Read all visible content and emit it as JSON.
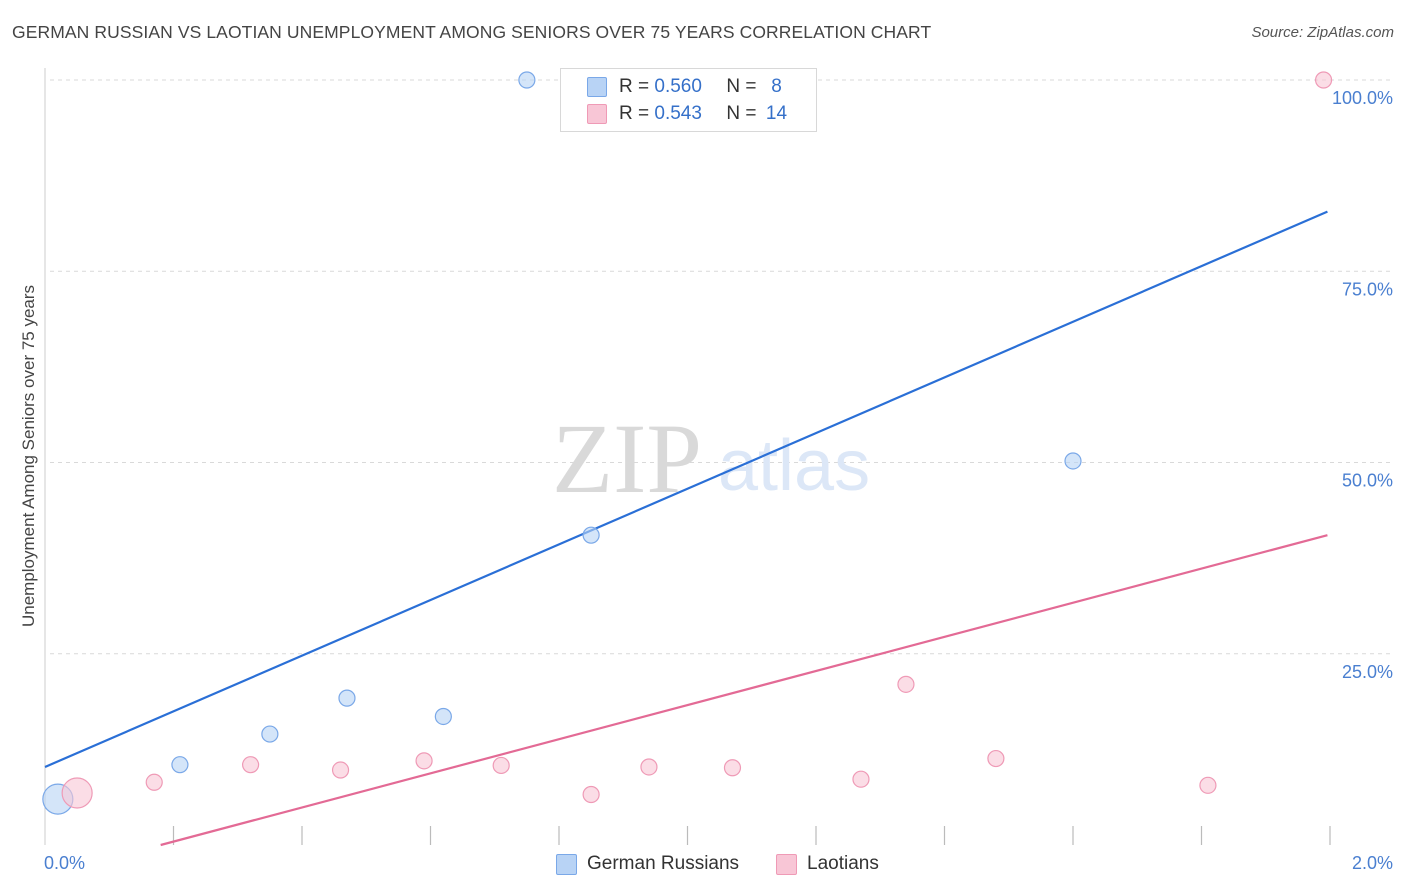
{
  "title": "GERMAN RUSSIAN VS LAOTIAN UNEMPLOYMENT AMONG SENIORS OVER 75 YEARS CORRELATION CHART",
  "source": "Source: ZipAtlas.com",
  "watermark": {
    "zip": "ZIP",
    "atlas": "atlas"
  },
  "colors": {
    "german_fill": "#b8d3f5",
    "german_stroke": "#7aa8e8",
    "german_line": "#2a6fd6",
    "laotian_fill": "#f8c6d6",
    "laotian_stroke": "#ef9ab6",
    "laotian_line": "#e36a95",
    "grid": "#d9d9d9",
    "axis_text": "#4a7fd0"
  },
  "legend": {
    "german": {
      "r_label": "R =",
      "r_value": "0.560",
      "n_label": "N =",
      "n_value": "8"
    },
    "laotian": {
      "r_label": "R =",
      "r_value": "0.543",
      "n_label": "N =",
      "n_value": "14"
    }
  },
  "bottom_legend": {
    "german": "German Russians",
    "laotian": "Laotians"
  },
  "chart_data": {
    "type": "scatter",
    "title": "GERMAN RUSSIAN VS LAOTIAN UNEMPLOYMENT AMONG SENIORS OVER 75 YEARS CORRELATION CHART",
    "xlabel": "",
    "ylabel": "Unemployment Among Seniors over 75 years",
    "xlim": [
      0,
      2.0
    ],
    "ylim": [
      0,
      100
    ],
    "x_tick_labels": [
      "0.0%",
      "2.0%"
    ],
    "y_ticks": [
      25,
      50,
      75,
      100
    ],
    "y_tick_labels": [
      "25.0%",
      "50.0%",
      "75.0%",
      "100.0%"
    ],
    "series": [
      {
        "name": "German Russians",
        "key": "german",
        "points": [
          {
            "x": 0.02,
            "y": 6.0,
            "size": "large"
          },
          {
            "x": 0.21,
            "y": 10.5
          },
          {
            "x": 0.35,
            "y": 14.5
          },
          {
            "x": 0.47,
            "y": 19.2
          },
          {
            "x": 0.62,
            "y": 16.8
          },
          {
            "x": 0.75,
            "y": 100.0
          },
          {
            "x": 0.85,
            "y": 40.5
          },
          {
            "x": 1.6,
            "y": 50.2
          }
        ],
        "trend": {
          "x0": 0.0,
          "y0": 10.2,
          "x1": 1.996,
          "y1": 82.8
        }
      },
      {
        "name": "Laotians",
        "key": "laotian",
        "points": [
          {
            "x": 0.05,
            "y": 6.8,
            "size": "large"
          },
          {
            "x": 0.17,
            "y": 8.2
          },
          {
            "x": 0.32,
            "y": 10.5
          },
          {
            "x": 0.46,
            "y": 9.8
          },
          {
            "x": 0.59,
            "y": 11.0
          },
          {
            "x": 0.71,
            "y": 10.4
          },
          {
            "x": 0.85,
            "y": 6.6
          },
          {
            "x": 0.94,
            "y": 10.2
          },
          {
            "x": 1.07,
            "y": 10.1
          },
          {
            "x": 1.27,
            "y": 8.6
          },
          {
            "x": 1.34,
            "y": 21.0
          },
          {
            "x": 1.48,
            "y": 11.3
          },
          {
            "x": 1.81,
            "y": 7.8
          },
          {
            "x": 1.99,
            "y": 100.0
          }
        ],
        "trend": {
          "x0": 0.18,
          "y0": 0.0,
          "x1": 1.996,
          "y1": 40.5
        }
      }
    ]
  }
}
